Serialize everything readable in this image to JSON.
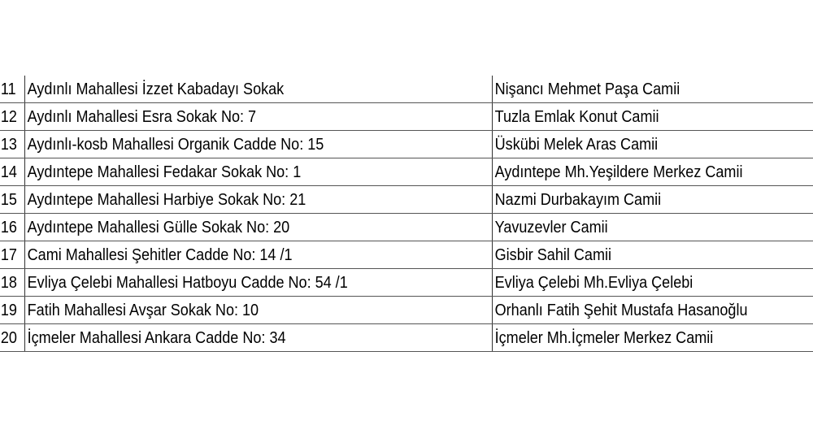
{
  "rows": [
    {
      "num": "11",
      "address": "Aydınlı Mahallesi İzzet Kabadayı Sokak",
      "mosque": "Nişancı Mehmet Paşa Camii"
    },
    {
      "num": "12",
      "address": "Aydınlı Mahallesi Esra Sokak No: 7",
      "mosque": "Tuzla Emlak Konut Camii"
    },
    {
      "num": "13",
      "address": "Aydınlı-kosb Mahallesi Organik Cadde No: 15",
      "mosque": "Üskübi Melek Aras Camii"
    },
    {
      "num": "14",
      "address": "Aydıntepe Mahallesi Fedakar Sokak No: 1",
      "mosque": "Aydıntepe Mh.Yeşildere Merkez Camii"
    },
    {
      "num": "15",
      "address": "Aydıntepe Mahallesi Harbiye Sokak No: 21",
      "mosque": "Nazmi Durbakayım Camii"
    },
    {
      "num": "16",
      "address": "Aydıntepe Mahallesi Gülle Sokak No: 20",
      "mosque": "Yavuzevler Camii"
    },
    {
      "num": "17",
      "address": "Cami Mahallesi Şehitler Cadde No: 14 /1",
      "mosque": "Gisbir Sahil Camii"
    },
    {
      "num": "18",
      "address": "Evliya Çelebi Mahallesi Hatboyu Cadde No: 54 /1",
      "mosque": "Evliya Çelebi Mh.Evliya Çelebi"
    },
    {
      "num": "19",
      "address": "Fatih Mahallesi Avşar Sokak No: 10",
      "mosque": "Orhanlı Fatih Şehit Mustafa Hasanoğlu"
    },
    {
      "num": "20",
      "address": "İçmeler Mahallesi Ankara Cadde No: 34",
      "mosque": "İçmeler Mh.İçmeler Merkez Camii"
    }
  ]
}
